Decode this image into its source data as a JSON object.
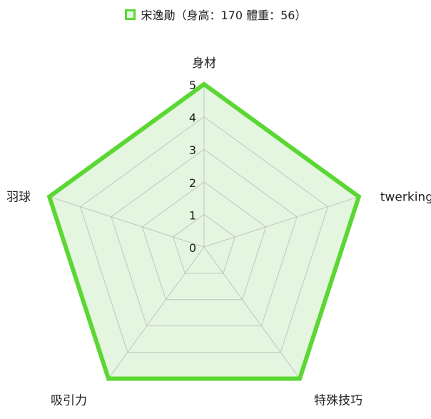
{
  "chart_data": {
    "type": "radar",
    "axes": [
      "身材",
      "twerking",
      "特殊技巧",
      "吸引力",
      "羽球"
    ],
    "scale": {
      "min": 0,
      "max": 5,
      "ticks": [
        "0",
        "1",
        "2",
        "3",
        "4",
        "5"
      ]
    },
    "grid": true,
    "legend_position": "top-center",
    "series": [
      {
        "name": "宋逸勛（身高：170 體重：56）",
        "values": [
          5,
          5,
          5,
          5,
          5
        ],
        "color": "#5bd733",
        "fill": "#e4f6df"
      }
    ]
  }
}
